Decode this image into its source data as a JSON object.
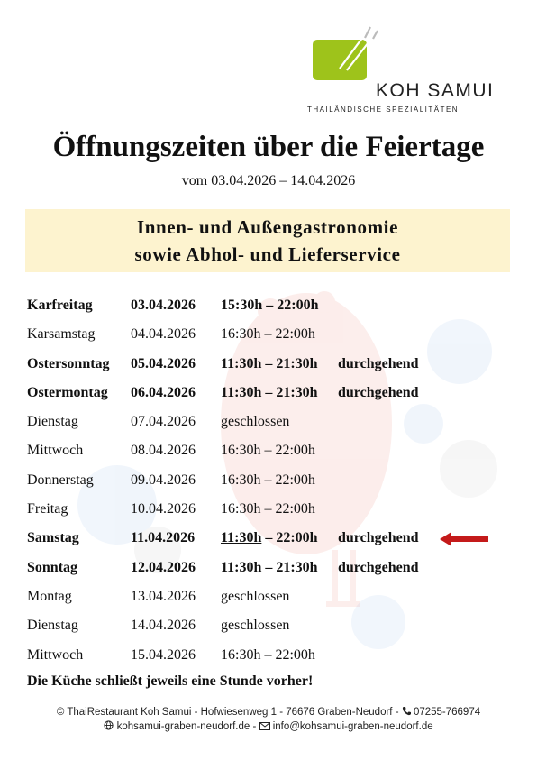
{
  "brand": {
    "name": "KOH SAMUI",
    "tagline": "THAILÄNDISCHE SPEZIALITÄTEN",
    "color": "#9ec31b"
  },
  "title": "Öffnungszeiten über die Feiertage",
  "subtitle": "vom 03.04.2026 – 14.04.2026",
  "banner": {
    "line1": "Innen- und Außengastronomie",
    "line2": "sowie Abhol- und Lieferservice",
    "background": "#fdf3cf"
  },
  "schedule": [
    {
      "day": "Karfreitag",
      "date": "03.04.2026",
      "time_start": "15:30h",
      "time_end": " – 22:00h",
      "note": "",
      "bold": true
    },
    {
      "day": "Karsamstag",
      "date": "04.04.2026",
      "time_start": "16:30h",
      "time_end": " – 22:00h",
      "note": "",
      "bold": false
    },
    {
      "day": "Ostersonntag",
      "date": "05.04.2026",
      "time_start": "11:30h",
      "time_end": " – 21:30h",
      "note": "durchgehend",
      "bold": true
    },
    {
      "day": "Ostermontag",
      "date": "06.04.2026",
      "time_start": "11:30h",
      "time_end": " – 21:30h",
      "note": "durchgehend",
      "bold": true
    },
    {
      "day": "Dienstag",
      "date": "07.04.2026",
      "time_start": "geschlossen",
      "time_end": "",
      "note": "",
      "bold": false
    },
    {
      "day": "Mittwoch",
      "date": "08.04.2026",
      "time_start": "16:30h",
      "time_end": " – 22:00h",
      "note": "",
      "bold": false
    },
    {
      "day": "Donnerstag",
      "date": "09.04.2026",
      "time_start": "16:30h",
      "time_end": " – 22:00h",
      "note": "",
      "bold": false
    },
    {
      "day": "Freitag",
      "date": "10.04.2026",
      "time_start": "16:30h",
      "time_end": " – 22:00h",
      "note": "",
      "bold": false
    },
    {
      "day": "Samstag",
      "date": "11.04.2026",
      "time_start": "11:30h",
      "time_end": " – 22:00h",
      "note": "durchgehend",
      "bold": true,
      "underline": true,
      "highlight_arrow": true
    },
    {
      "day": "Sonntag",
      "date": "12.04.2026",
      "time_start": "11:30h",
      "time_end": " – 21:30h",
      "note": "durchgehend",
      "bold": true
    },
    {
      "day": "Montag",
      "date": "13.04.2026",
      "time_start": "geschlossen",
      "time_end": "",
      "note": "",
      "bold": false
    },
    {
      "day": "Dienstag",
      "date": "14.04.2026",
      "time_start": "geschlossen",
      "time_end": "",
      "note": "",
      "bold": false
    },
    {
      "day": "Mittwoch",
      "date": "15.04.2026",
      "time_start": "16:30h",
      "time_end": " – 22:00h",
      "note": "",
      "bold": false
    }
  ],
  "kitchen_note": "Die Küche schließt jeweils eine Stunde vorher!",
  "footer": {
    "line1_text": "© ThaiRestaurant Koh Samui - Hofwiesenweg 1 - 76676 Graben-Neudorf - ",
    "phone": "07255-766974",
    "website": "kohsamui-graben-neudorf.de",
    "separator": " - ",
    "email": "info@kohsamui-graben-neudorf.de"
  },
  "accent": {
    "arrow_color": "#c41a1a"
  },
  "icons": [
    "phone-icon",
    "globe-icon",
    "mail-icon",
    "chopsticks-icon",
    "left-arrow-icon"
  ]
}
